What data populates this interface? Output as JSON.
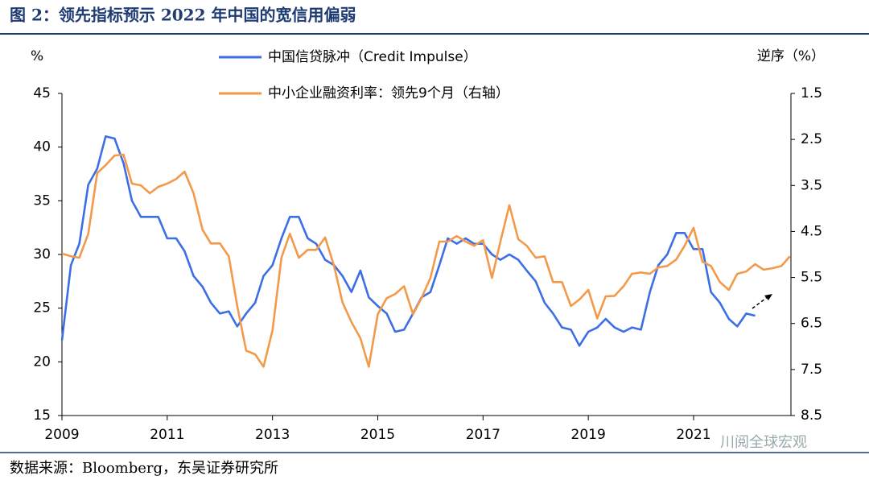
{
  "chart_data": {
    "type": "line",
    "title": "图 2：领先指标预示 2022 年中国的宽信用偏弱",
    "source": "数据来源：Bloomberg，东吴证券研究所",
    "watermark": "川阅全球宏观",
    "ylabel": "%",
    "y2label": "逆序（%）",
    "xlim": [
      2009,
      2022.85
    ],
    "xticks": [
      2009,
      2011,
      2013,
      2015,
      2017,
      2019,
      2021
    ],
    "ylim": [
      15,
      45
    ],
    "yticks": [
      15,
      20,
      25,
      30,
      35,
      40,
      45
    ],
    "y2lim": [
      1.5,
      8.5
    ],
    "y2_inverted": true,
    "y2ticks": [
      1.5,
      2.5,
      3.5,
      4.5,
      5.5,
      6.5,
      7.5,
      8.5
    ],
    "grid": false,
    "x": [
      2009,
      2009.17,
      2009.33,
      2009.5,
      2009.67,
      2009.83,
      2010,
      2010.17,
      2010.33,
      2010.5,
      2010.67,
      2010.83,
      2011,
      2011.17,
      2011.33,
      2011.5,
      2011.67,
      2011.83,
      2012,
      2012.17,
      2012.33,
      2012.5,
      2012.67,
      2012.83,
      2013,
      2013.17,
      2013.33,
      2013.5,
      2013.67,
      2013.83,
      2014,
      2014.17,
      2014.33,
      2014.5,
      2014.67,
      2014.83,
      2015,
      2015.17,
      2015.33,
      2015.5,
      2015.67,
      2015.83,
      2016,
      2016.17,
      2016.33,
      2016.5,
      2016.67,
      2016.83,
      2017,
      2017.17,
      2017.33,
      2017.5,
      2017.67,
      2017.83,
      2018,
      2018.17,
      2018.33,
      2018.5,
      2018.67,
      2018.83,
      2019,
      2019.17,
      2019.33,
      2019.5,
      2019.67,
      2019.83,
      2020,
      2020.17,
      2020.33,
      2020.5,
      2020.67,
      2020.83,
      2021,
      2021.17,
      2021.33,
      2021.5,
      2021.67,
      2021.83,
      2022,
      2022.17,
      2022.33,
      2022.5,
      2022.67,
      2022.83
    ],
    "series": [
      {
        "name": "中国信贷脉冲（Credit Impulse）",
        "color": "#3c6ee6",
        "axis": "y",
        "values": [
          22,
          29,
          31,
          36.5,
          38,
          41,
          40.8,
          38.5,
          35,
          33.5,
          33.5,
          33.5,
          31.5,
          31.5,
          30.3,
          28,
          27,
          25.5,
          24.5,
          24.7,
          23.3,
          24.5,
          25.5,
          28,
          29,
          31.5,
          33.5,
          33.5,
          31.5,
          31,
          29.5,
          29,
          28,
          26.5,
          28.5,
          26,
          25.2,
          24.5,
          22.8,
          23,
          24.5,
          26,
          26.5,
          29,
          31.5,
          31,
          31.5,
          31,
          31,
          30,
          29.5,
          30,
          29.5,
          28.5,
          27.5,
          25.5,
          24.5,
          23.2,
          23,
          21.5,
          22.8,
          23.2,
          24,
          23.2,
          22.8,
          23.2,
          23,
          26.5,
          29,
          30,
          32,
          32,
          30.5,
          30.5,
          26.5,
          25.5,
          24,
          23.3,
          24.5,
          24.3,
          null,
          null,
          null,
          null
        ]
      },
      {
        "name": "中小企业融资利率：领先9个月（右轴）",
        "color": "#f39a4a",
        "axis": "y2",
        "values": [
          4.98,
          5.04,
          5.07,
          4.55,
          3.23,
          3.06,
          2.85,
          2.83,
          3.46,
          3.5,
          3.67,
          3.53,
          3.46,
          3.36,
          3.2,
          3.67,
          4.46,
          4.76,
          4.76,
          5.04,
          6.12,
          7.09,
          7.17,
          7.44,
          6.65,
          5.07,
          4.55,
          5.07,
          4.9,
          4.9,
          4.63,
          5.25,
          6.04,
          6.47,
          6.82,
          7.44,
          6.3,
          5.95,
          5.86,
          5.69,
          6.3,
          5.95,
          5.51,
          4.72,
          4.72,
          4.6,
          4.72,
          4.81,
          4.69,
          5.51,
          4.72,
          3.93,
          4.67,
          4.81,
          5.07,
          5.04,
          5.6,
          5.6,
          6.12,
          5.98,
          5.77,
          6.39,
          5.91,
          5.9,
          5.69,
          5.42,
          5.39,
          5.42,
          5.28,
          5.25,
          5.11,
          4.81,
          4.42,
          5.16,
          5.25,
          5.6,
          5.77,
          5.42,
          5.37,
          5.21,
          5.33,
          5.3,
          5.25,
          5.04
        ]
      }
    ]
  }
}
